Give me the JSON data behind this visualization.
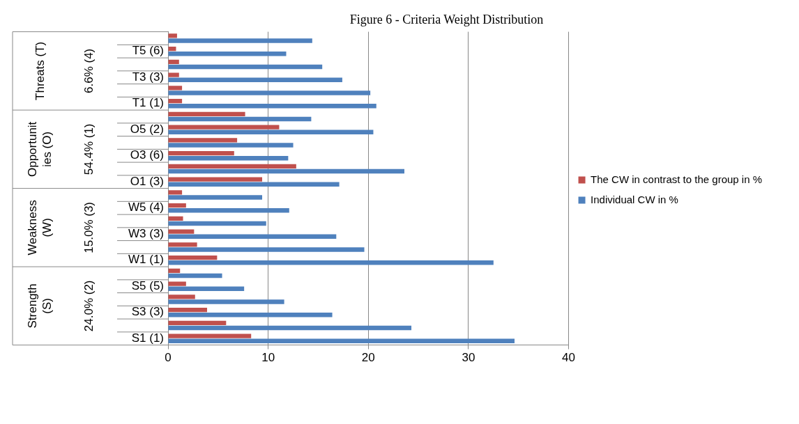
{
  "chart_data": {
    "type": "bar",
    "orientation": "horizontal",
    "title": "Figure 6 - Criteria Weight Distribution",
    "categories": [
      null,
      "T5 (6)",
      null,
      "T3 (3)",
      null,
      "T1 (1)",
      null,
      "O5 (2)",
      null,
      "O3 (6)",
      null,
      "O1 (3)",
      null,
      "W5 (4)",
      null,
      "W3 (3)",
      null,
      "W1 (1)",
      null,
      "S5 (5)",
      null,
      "S3 (3)",
      null,
      "S1 (1)"
    ],
    "series": [
      {
        "name": "The CW in contrast to the group in %",
        "color": "#c0504d",
        "values": [
          0.9,
          0.8,
          1.1,
          1.1,
          1.4,
          1.4,
          7.7,
          11.1,
          6.9,
          6.6,
          12.8,
          9.4,
          1.4,
          1.8,
          1.5,
          2.6,
          2.9,
          4.9,
          1.2,
          1.8,
          2.7,
          3.9,
          5.8,
          8.3
        ]
      },
      {
        "name": "Individual CW in %",
        "color": "#4f81bd",
        "values": [
          14.4,
          11.8,
          15.4,
          17.4,
          20.2,
          20.8,
          14.3,
          20.5,
          12.5,
          12.0,
          23.6,
          17.1,
          9.4,
          12.1,
          9.8,
          16.8,
          19.6,
          32.5,
          5.4,
          7.6,
          11.6,
          16.4,
          24.3,
          34.6
        ]
      }
    ],
    "xlim": [
      0,
      40
    ],
    "xticks": [
      0,
      10,
      20,
      30,
      40
    ],
    "grid": "x",
    "legend": "right",
    "annotations": [
      "Threats (T)",
      "6.6% (4)",
      "Opportunit\nies (O)",
      "54.4% (1)",
      "Weakness\n(W)",
      "15.0% (3)",
      "Strength\n(S)",
      "24.0% (2)"
    ]
  }
}
